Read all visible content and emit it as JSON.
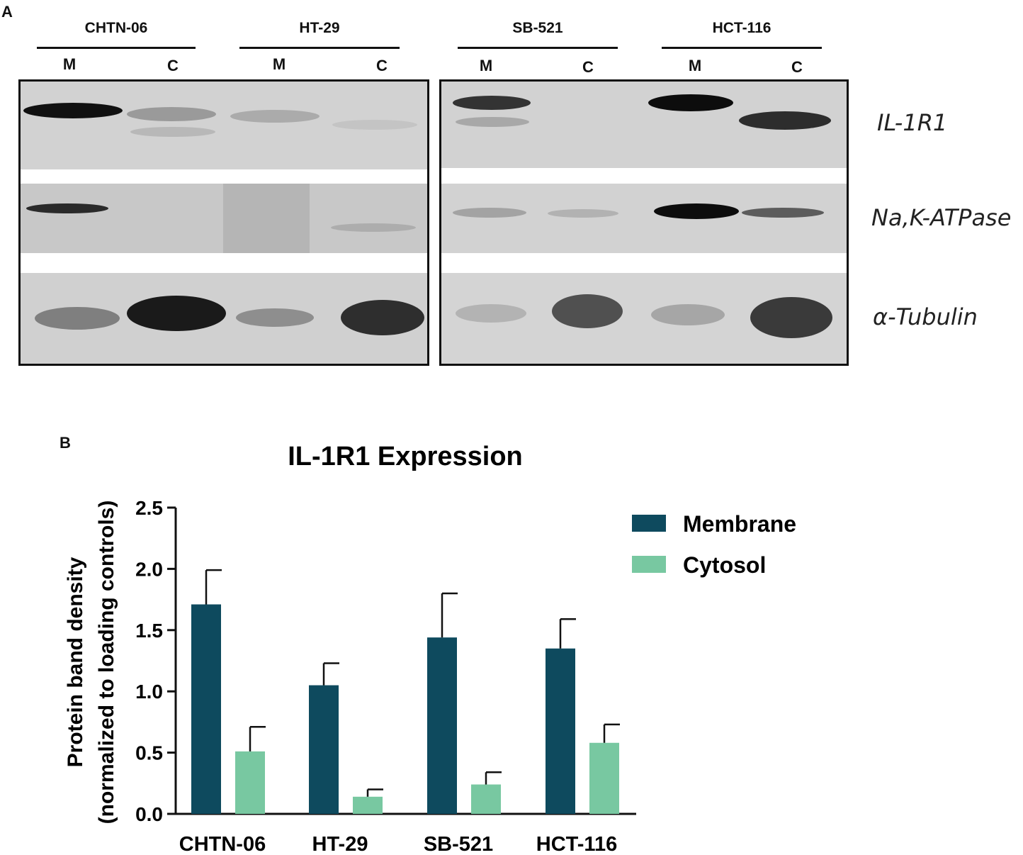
{
  "panel_a": {
    "letter": "A",
    "groups": [
      {
        "name": "CHTN-06",
        "lanes": [
          "M",
          "C"
        ]
      },
      {
        "name": "HT-29",
        "lanes": [
          "M",
          "C"
        ]
      },
      {
        "name": "SB-521",
        "lanes": [
          "M",
          "C"
        ]
      },
      {
        "name": "HCT-116",
        "lanes": [
          "M",
          "C"
        ]
      }
    ],
    "proteins": [
      "IL-1R1",
      "Na,K-ATPase",
      "α-Tubulin"
    ]
  },
  "panel_b": {
    "letter": "B"
  },
  "chart_data": {
    "type": "bar",
    "title": "IL-1R1 Expression",
    "ylabel_line1": "Protein band density",
    "ylabel_line2": "(normalized to loading controls)",
    "xlabel": "",
    "categories": [
      "CHTN-06",
      "HT-29",
      "SB-521",
      "HCT-116"
    ],
    "ylim": [
      0,
      2.5
    ],
    "yticks": [
      "0.0",
      "0.5",
      "1.0",
      "1.5",
      "2.0",
      "2.5"
    ],
    "legend_position": "top-right",
    "grid": false,
    "series": [
      {
        "name": "Membrane",
        "color": "#0e4a5e",
        "values": [
          1.71,
          1.05,
          1.44,
          1.35
        ],
        "errors": [
          0.28,
          0.18,
          0.36,
          0.24
        ]
      },
      {
        "name": "Cytosol",
        "color": "#78c8a1",
        "values": [
          0.51,
          0.14,
          0.24,
          0.58
        ],
        "errors": [
          0.2,
          0.06,
          0.1,
          0.15
        ]
      }
    ]
  }
}
